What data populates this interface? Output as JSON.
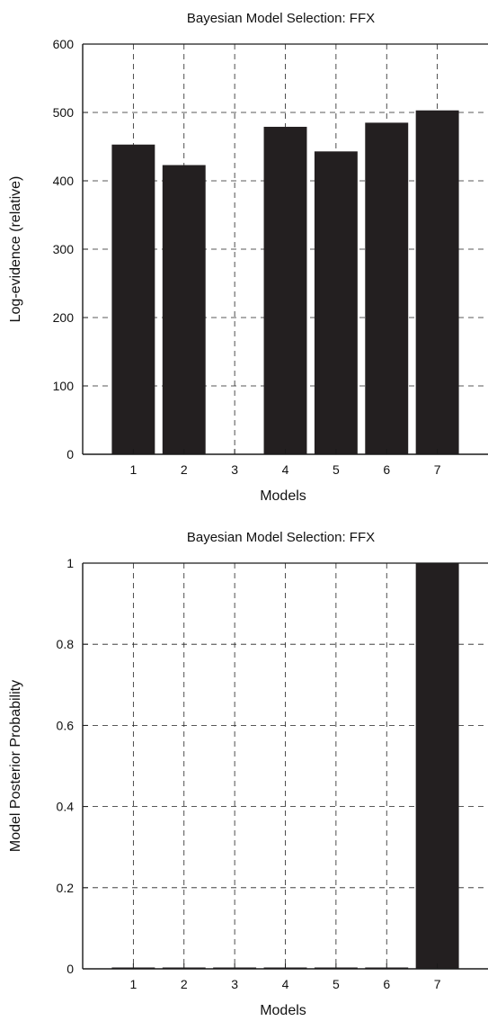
{
  "colors": {
    "bar": "#231f20",
    "axis": "#1a1a1a",
    "grid": "#222222",
    "background": "#ffffff"
  },
  "chart_data": [
    {
      "type": "bar",
      "title": "Bayesian Model Selection: FFX",
      "xlabel": "Models",
      "ylabel": "Log-evidence (relative)",
      "categories": [
        "1",
        "2",
        "3",
        "4",
        "5",
        "6",
        "7"
      ],
      "values": [
        453,
        423,
        0,
        479,
        443,
        485,
        503
      ],
      "ylim": [
        0,
        600
      ],
      "yticks": [
        "0",
        "100",
        "200",
        "300",
        "400",
        "500",
        "600"
      ],
      "grid": true,
      "legend": "none"
    },
    {
      "type": "bar",
      "title": "Bayesian Model Selection: FFX",
      "xlabel": "Models",
      "ylabel": "Model Posterior Probability",
      "categories": [
        "1",
        "2",
        "3",
        "4",
        "5",
        "6",
        "7"
      ],
      "values": [
        0,
        0,
        0,
        0,
        0,
        0,
        1
      ],
      "ylim": [
        0,
        1
      ],
      "yticks": [
        "0",
        "0.2",
        "0.4",
        "0.6",
        "0.8",
        "1"
      ],
      "grid": true,
      "legend": "none"
    }
  ]
}
